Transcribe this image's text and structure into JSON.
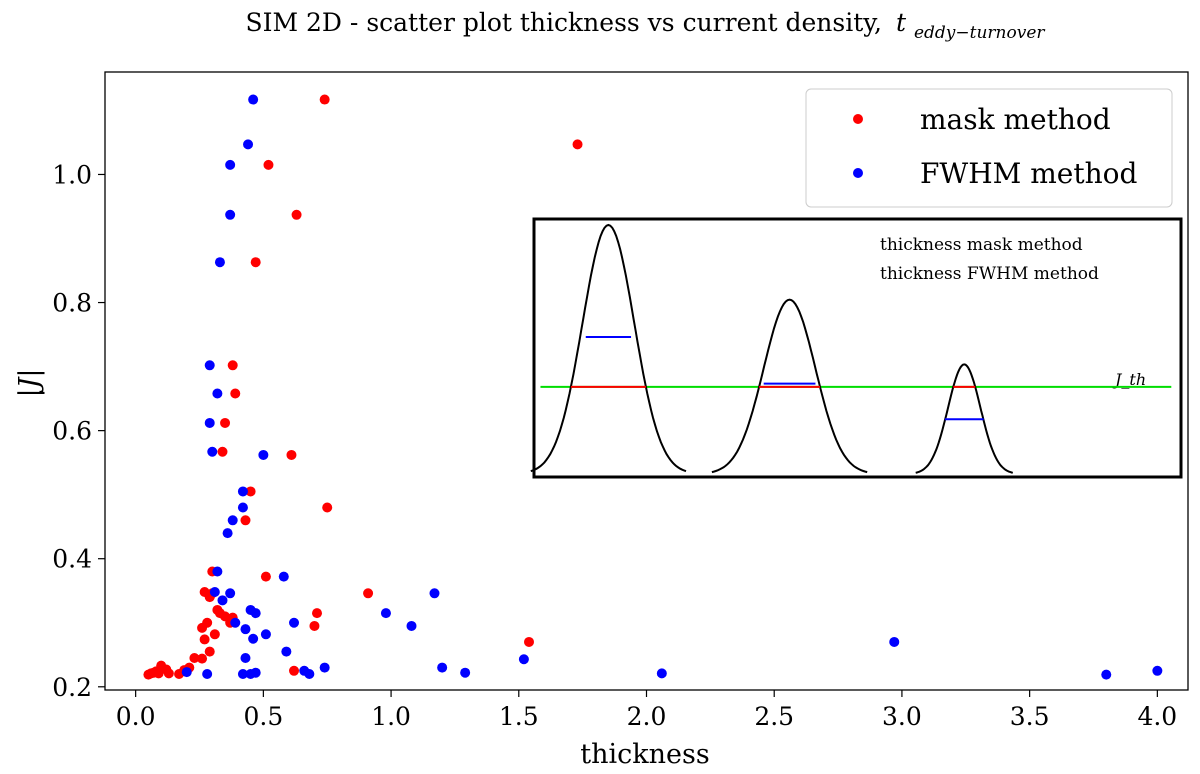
{
  "chart_data": {
    "type": "scatter",
    "title_main": "SIM 2D - scatter plot thickness vs current density,",
    "title_var": "t",
    "title_sub": "eddy−turnover",
    "xlabel": "thickness",
    "ylabel": "|J|",
    "xlim": [
      -0.12,
      4.12
    ],
    "ylim": [
      0.195,
      1.16
    ],
    "xticks": [
      "0.0",
      "0.5",
      "1.0",
      "1.5",
      "2.0",
      "2.5",
      "3.0",
      "3.5",
      "4.0"
    ],
    "yticks": [
      "0.2",
      "0.4",
      "0.6",
      "0.8",
      "1.0"
    ],
    "legend_position": "top-right",
    "series": [
      {
        "name": "mask method",
        "color": "#ff0000",
        "points": [
          [
            0.05,
            0.219
          ],
          [
            0.06,
            0.221
          ],
          [
            0.07,
            0.222
          ],
          [
            0.08,
            0.224
          ],
          [
            0.09,
            0.221
          ],
          [
            0.1,
            0.233
          ],
          [
            0.12,
            0.227
          ],
          [
            0.13,
            0.221
          ],
          [
            0.17,
            0.22
          ],
          [
            0.19,
            0.226
          ],
          [
            0.21,
            0.23
          ],
          [
            0.23,
            0.245
          ],
          [
            0.26,
            0.244
          ],
          [
            0.27,
            0.274
          ],
          [
            0.28,
            0.3
          ],
          [
            0.29,
            0.255
          ],
          [
            0.31,
            0.282
          ],
          [
            0.26,
            0.292
          ],
          [
            0.29,
            0.34
          ],
          [
            0.27,
            0.348
          ],
          [
            0.3,
            0.346
          ],
          [
            0.33,
            0.315
          ],
          [
            0.35,
            0.31
          ],
          [
            0.37,
            0.3
          ],
          [
            0.38,
            0.308
          ],
          [
            0.32,
            0.32
          ],
          [
            0.3,
            0.38
          ],
          [
            0.34,
            0.567
          ],
          [
            0.35,
            0.612
          ],
          [
            0.39,
            0.658
          ],
          [
            0.38,
            0.702
          ],
          [
            0.43,
            0.46
          ],
          [
            0.45,
            0.505
          ],
          [
            0.47,
            0.863
          ],
          [
            0.51,
            0.372
          ],
          [
            0.52,
            1.015
          ],
          [
            0.61,
            0.562
          ],
          [
            0.62,
            0.225
          ],
          [
            0.63,
            0.937
          ],
          [
            0.7,
            0.295
          ],
          [
            0.71,
            0.315
          ],
          [
            0.74,
            1.117
          ],
          [
            0.75,
            0.48
          ],
          [
            0.91,
            0.346
          ],
          [
            1.54,
            0.27
          ],
          [
            1.73,
            1.047
          ]
        ]
      },
      {
        "name": "FWHM method",
        "color": "#0000ff",
        "points": [
          [
            0.2,
            0.223
          ],
          [
            0.28,
            0.22
          ],
          [
            0.29,
            0.702
          ],
          [
            0.29,
            0.612
          ],
          [
            0.3,
            0.567
          ],
          [
            0.31,
            0.348
          ],
          [
            0.32,
            0.38
          ],
          [
            0.32,
            0.658
          ],
          [
            0.33,
            0.863
          ],
          [
            0.34,
            0.335
          ],
          [
            0.36,
            0.44
          ],
          [
            0.37,
            0.346
          ],
          [
            0.37,
            0.937
          ],
          [
            0.37,
            1.015
          ],
          [
            0.38,
            0.46
          ],
          [
            0.39,
            0.3
          ],
          [
            0.42,
            0.505
          ],
          [
            0.42,
            0.48
          ],
          [
            0.42,
            0.22
          ],
          [
            0.43,
            0.29
          ],
          [
            0.43,
            0.245
          ],
          [
            0.44,
            1.047
          ],
          [
            0.45,
            0.32
          ],
          [
            0.46,
            1.117
          ],
          [
            0.45,
            0.22
          ],
          [
            0.47,
            0.222
          ],
          [
            0.46,
            0.275
          ],
          [
            0.47,
            0.315
          ],
          [
            0.5,
            0.562
          ],
          [
            0.51,
            0.282
          ],
          [
            0.58,
            0.372
          ],
          [
            0.59,
            0.255
          ],
          [
            0.62,
            0.3
          ],
          [
            0.66,
            0.225
          ],
          [
            0.68,
            0.22
          ],
          [
            0.74,
            0.23
          ],
          [
            0.98,
            0.315
          ],
          [
            1.08,
            0.295
          ],
          [
            1.17,
            0.346
          ],
          [
            1.2,
            0.23
          ],
          [
            1.29,
            0.222
          ],
          [
            1.52,
            0.243
          ],
          [
            2.06,
            0.221
          ],
          [
            2.97,
            0.27
          ],
          [
            3.8,
            0.219
          ],
          [
            4.0,
            0.225
          ]
        ]
      }
    ],
    "inset": {
      "label_mask": "thickness mask method",
      "label_fwhm": "thickness FWHM method",
      "label_threshold": "J_th",
      "threshold": 0.35,
      "color_mask": "#ff0000",
      "color_fwhm": "#0000ff",
      "color_threshold": "#00dd00",
      "peaks": [
        {
          "center": 0.115,
          "height": 1.0,
          "width": 0.04,
          "fwhm_level": 0.55,
          "fwhm_width": 0.035
        },
        {
          "center": 0.395,
          "height": 0.7,
          "width": 0.04,
          "fwhm_level": 0.355,
          "fwhm_width": 0.04
        },
        {
          "center": 0.665,
          "height": 0.44,
          "width": 0.025,
          "fwhm_level": 0.22,
          "fwhm_width": 0.03
        }
      ]
    }
  }
}
